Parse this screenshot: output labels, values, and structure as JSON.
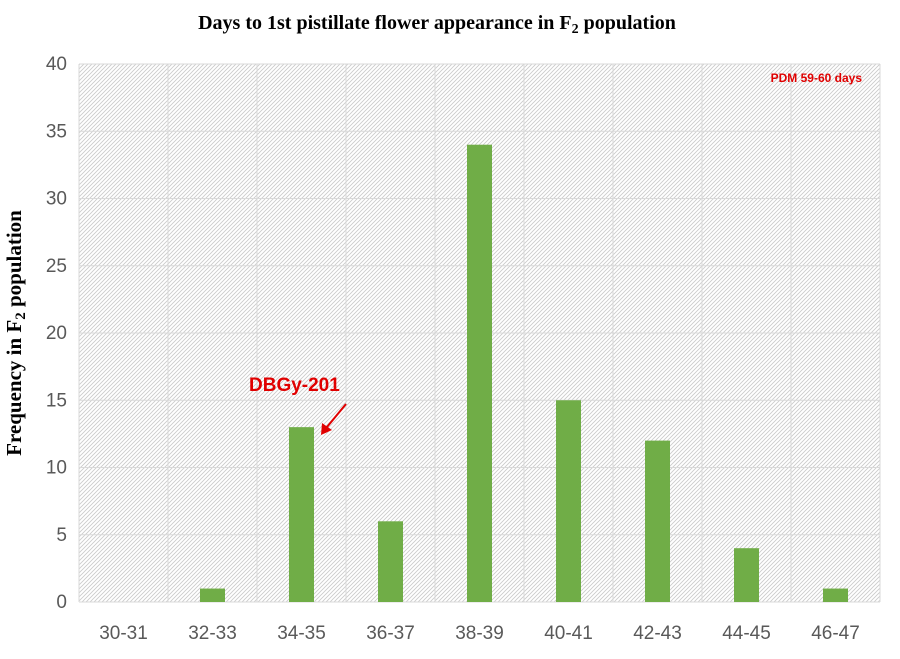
{
  "chart_data": {
    "type": "bar",
    "title": "Days to 1st  pistillate flower appearance in F",
    "title_sub": "2",
    "title_tail": " population",
    "ylabel": "Frequency in F",
    "ylabel_sub": "2",
    "ylabel_tail": " population",
    "xlabel": "",
    "categories": [
      "30-31",
      "32-33",
      "34-35",
      "36-37",
      "38-39",
      "40-41",
      "42-43",
      "44-45",
      "46-47"
    ],
    "values": [
      0,
      1,
      13,
      6,
      34,
      15,
      12,
      4,
      1
    ],
    "ylim": [
      0,
      40
    ],
    "yticks": [
      0,
      5,
      10,
      15,
      20,
      25,
      30,
      35,
      40
    ],
    "grid": true,
    "bar_color": "#70ad47",
    "annotations": [
      {
        "text": "PDM 59-60 days",
        "color": "#e00000"
      },
      {
        "text": "DBGy-201",
        "color": "#e00000",
        "points_to_category": "34-35"
      }
    ]
  }
}
